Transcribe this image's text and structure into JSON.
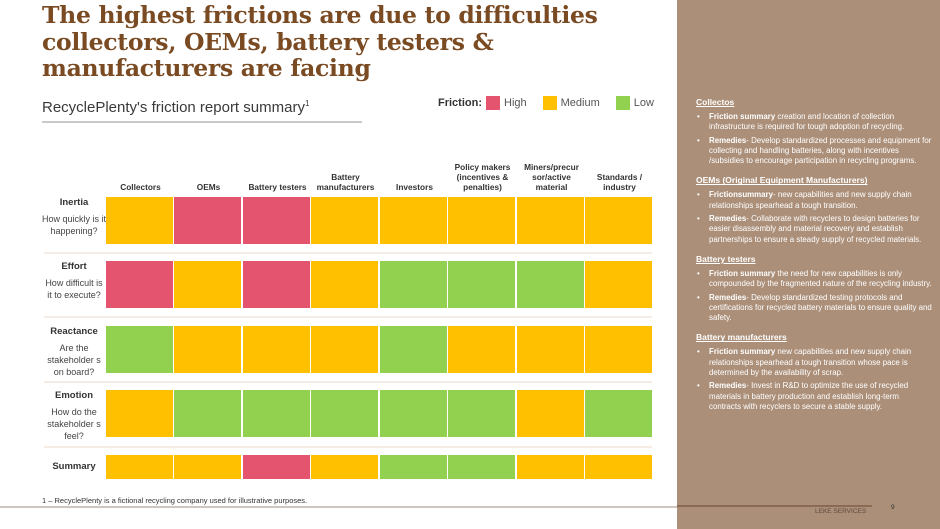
{
  "title": "The highest frictions are due to difficulties collectors, OEMs, battery testers & manufacturers are facing",
  "subtitle": "RecyclePlenty's friction report summary",
  "subtitle_sup": "1",
  "legend": {
    "lead": "Friction:",
    "items": [
      {
        "label": "High",
        "color": "#e5546f"
      },
      {
        "label": "Medium",
        "color": "#ffc000"
      },
      {
        "label": "Low",
        "color": "#92d050"
      }
    ]
  },
  "columns": [
    "Collectors",
    "OEMs",
    "Battery testers",
    "Battery manufacturers",
    "Investors",
    "Policy makers (incentives & penalties)",
    "Miners/precur sor/active material",
    "Standards / industry"
  ],
  "rows": [
    {
      "name": "Inertia",
      "question": "How quickly is it happening?",
      "levels": [
        "Medium",
        "High",
        "High",
        "Medium",
        "Medium",
        "Medium",
        "Medium",
        "Medium"
      ]
    },
    {
      "name": "Effort",
      "question": "How difficult is it to execute?",
      "levels": [
        "High",
        "Medium",
        "High",
        "Medium",
        "Low",
        "Low",
        "Low",
        "Medium"
      ]
    },
    {
      "name": "Reactance",
      "question": "Are the stakeholder s on board?",
      "levels": [
        "Low",
        "Medium",
        "Medium",
        "Medium",
        "Low",
        "Medium",
        "Medium",
        "Medium"
      ]
    },
    {
      "name": "Emotion",
      "question": "How do the stakeholder s feel?",
      "levels": [
        "Medium",
        "Low",
        "Low",
        "Low",
        "Low",
        "Low",
        "Medium",
        "Low"
      ]
    },
    {
      "name": "Summary",
      "question": "",
      "levels": [
        "Medium",
        "Medium",
        "High",
        "Medium",
        "Low",
        "Low",
        "Medium",
        "Medium"
      ]
    }
  ],
  "level_colors": {
    "High": "#e5546f",
    "Medium": "#ffc000",
    "Low": "#92d050"
  },
  "footnote": "1 – RecyclePlenty is a fictional recycling company used for illustrative purposes.",
  "panel": {
    "sections": [
      {
        "title": "Collectos",
        "items": [
          {
            "lead": "Friction summary",
            "text": " creation and location of collection infrastructure is required for tough adoption of recycling."
          },
          {
            "lead": "Remedies",
            "text": "- Develop standardized processes and equipment for collecting and handling batteries, along with incentives /subsidies to encourage participation in recycling programs."
          }
        ]
      },
      {
        "title": "OEMs (Original Equipment Manufacturers)",
        "items": [
          {
            "lead": "Frictionsummary",
            "text": "- new capabilities and new supply chain relationships spearhead a tough transition."
          },
          {
            "lead": "Remedies",
            "text": "- Collaborate with recyclers to design batteries for easier disassembly and material recovery and establish partnerships to ensure a steady supply of recycled materials."
          }
        ]
      },
      {
        "title": "Battery testers",
        "items": [
          {
            "lead": "Friction summary",
            "text": " the need for new capabilities is only compounded by the fragmented nature of the recycling industry."
          },
          {
            "lead": "Remedies",
            "text": "- Develop standardized testing protocols and certifications for recycled battery materials to ensure quality and safety."
          }
        ]
      },
      {
        "title": "Battery manufacturers",
        "items": [
          {
            "lead": "Friction summary",
            "text": " new capabilities and new supply chain relationships spearhead a tough transition whose pace is determined by the availability of scrap."
          },
          {
            "lead": "Remedies",
            "text": "- Invest in R&D to optimize the use of recycled materials in battery production and establish long-term contracts with recyclers to secure a stable supply."
          }
        ]
      }
    ],
    "bullet": "•"
  },
  "footer": {
    "company": "LEKE SERVICES",
    "page": "9"
  }
}
